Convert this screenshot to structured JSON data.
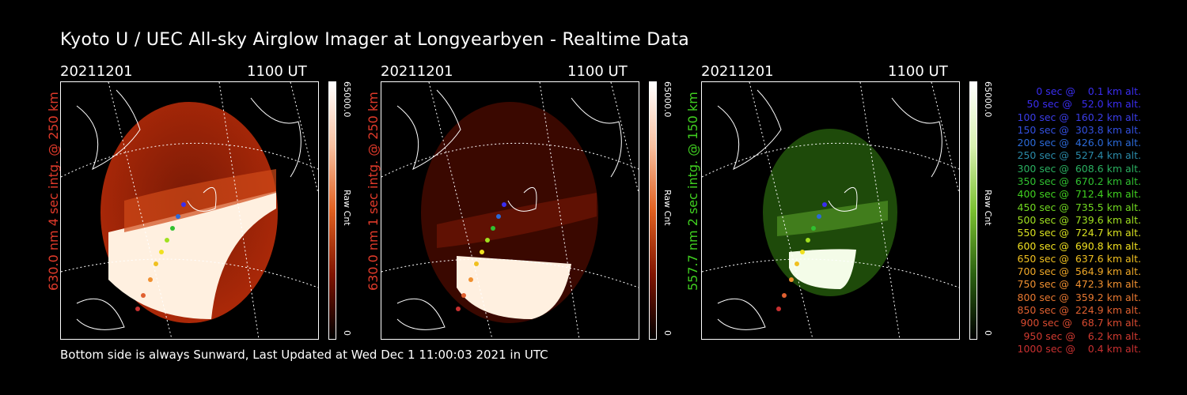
{
  "title": "Kyoto U / UEC All-sky Airglow Imager at Longyearbyen - Realtime Data",
  "footer": "Bottom side is always Sunward, Last Updated at Wed Dec  1 11:00:03 2021 in UTC",
  "panels": [
    {
      "date": "20211201",
      "time": "1100 UT",
      "ylabel": "630.0 nm 4 sec intg. @ 250 km",
      "ylabel_color": "#e03a2a",
      "cbar_max": "65000.0",
      "cbar_min": "0",
      "cbar_label": "Raw Cnt",
      "colormap": "red"
    },
    {
      "date": "20211201",
      "time": "1100 UT",
      "ylabel": "630.0 nm 1 sec intg. @ 250 km",
      "ylabel_color": "#e03a2a",
      "cbar_max": "65000.0",
      "cbar_min": "0",
      "cbar_label": "Raw Cnt",
      "colormap": "red"
    },
    {
      "date": "20211201",
      "time": "1100 UT",
      "ylabel": "557.7 nm 2 sec intg. @ 150 km",
      "ylabel_color": "#40d020",
      "cbar_max": "65000.0",
      "cbar_min": "0",
      "cbar_label": "Raw Cnt",
      "colormap": "green"
    }
  ],
  "legend": [
    {
      "text": "   0 sec @    0.1 km alt.",
      "color": "#3a2df0"
    },
    {
      "text": "  50 sec @   52.0 km alt.",
      "color": "#3a2df0"
    },
    {
      "text": " 100 sec @  160.2 km alt.",
      "color": "#3a3de8"
    },
    {
      "text": " 150 sec @  303.8 km alt.",
      "color": "#3350e0"
    },
    {
      "text": " 200 sec @  426.0 km alt.",
      "color": "#2b6ad8"
    },
    {
      "text": " 250 sec @  527.4 km alt.",
      "color": "#2a8aa8"
    },
    {
      "text": " 300 sec @  608.6 km alt.",
      "color": "#2ab060"
    },
    {
      "text": " 350 sec @  670.2 km alt.",
      "color": "#30c030"
    },
    {
      "text": " 400 sec @  712.4 km alt.",
      "color": "#40d020"
    },
    {
      "text": " 450 sec @  735.5 km alt.",
      "color": "#70d820"
    },
    {
      "text": " 500 sec @  739.6 km alt.",
      "color": "#a0e020"
    },
    {
      "text": " 550 sec @  724.7 km alt.",
      "color": "#d8e020"
    },
    {
      "text": " 600 sec @  690.8 km alt.",
      "color": "#f0e020"
    },
    {
      "text": " 650 sec @  637.6 km alt.",
      "color": "#f0c020"
    },
    {
      "text": " 700 sec @  564.9 km alt.",
      "color": "#f0a828"
    },
    {
      "text": " 750 sec @  472.3 km alt.",
      "color": "#f09030"
    },
    {
      "text": " 800 sec @  359.2 km alt.",
      "color": "#e87830"
    },
    {
      "text": " 850 sec @  224.9 km alt.",
      "color": "#e06030"
    },
    {
      "text": " 900 sec @   68.7 km alt.",
      "color": "#d84a30"
    },
    {
      "text": " 950 sec @    6.2 km alt.",
      "color": "#d03a30"
    },
    {
      "text": "1000 sec @    0.4 km alt.",
      "color": "#c83030"
    }
  ]
}
